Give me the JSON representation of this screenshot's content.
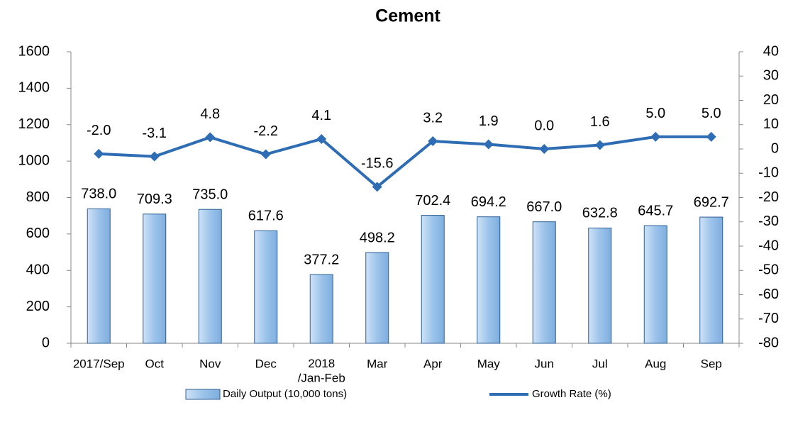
{
  "chart_data": {
    "type": "bar+line",
    "title": "Cement",
    "categories": [
      "2017/Sep",
      "Oct",
      "Nov",
      "Dec",
      "2018\n/Jan-Feb",
      "Mar",
      "Apr",
      "May",
      "Jun",
      "Jul",
      "Aug",
      "Sep"
    ],
    "series": [
      {
        "name": "Daily Output (10,000 tons)",
        "type": "bar",
        "color": "#9cc3ea",
        "values": [
          738.0,
          709.3,
          735.0,
          617.6,
          377.2,
          498.2,
          702.4,
          694.2,
          667.0,
          632.8,
          645.7,
          692.7
        ],
        "value_labels": [
          "738.0",
          "709.3",
          "735.0",
          "617.6",
          "377.2",
          "498.2",
          "702.4",
          "694.2",
          "667.0",
          "632.8",
          "645.7",
          "692.7"
        ]
      },
      {
        "name": "Growth Rate (%)",
        "type": "line",
        "axis": "y2",
        "color": "#2e6db4",
        "values": [
          -2.0,
          -3.1,
          4.8,
          -2.2,
          4.1,
          -15.6,
          3.2,
          1.9,
          0.0,
          1.6,
          5.0,
          5.0
        ],
        "value_labels": [
          "-2.0",
          "-3.1",
          "4.8",
          "-2.2",
          "4.1",
          "-15.6",
          "3.2",
          "1.9",
          "0.0",
          "1.6",
          "5.0",
          "5.0"
        ]
      }
    ],
    "ylim": [
      0,
      1600
    ],
    "yticks": [
      0,
      200,
      400,
      600,
      800,
      1000,
      1200,
      1400,
      1600
    ],
    "y2lim": [
      -80,
      40
    ],
    "y2ticks": [
      -80,
      -70,
      -60,
      -50,
      -40,
      -30,
      -20,
      -10,
      0,
      10,
      20,
      30,
      40
    ],
    "legend": "bottom"
  }
}
